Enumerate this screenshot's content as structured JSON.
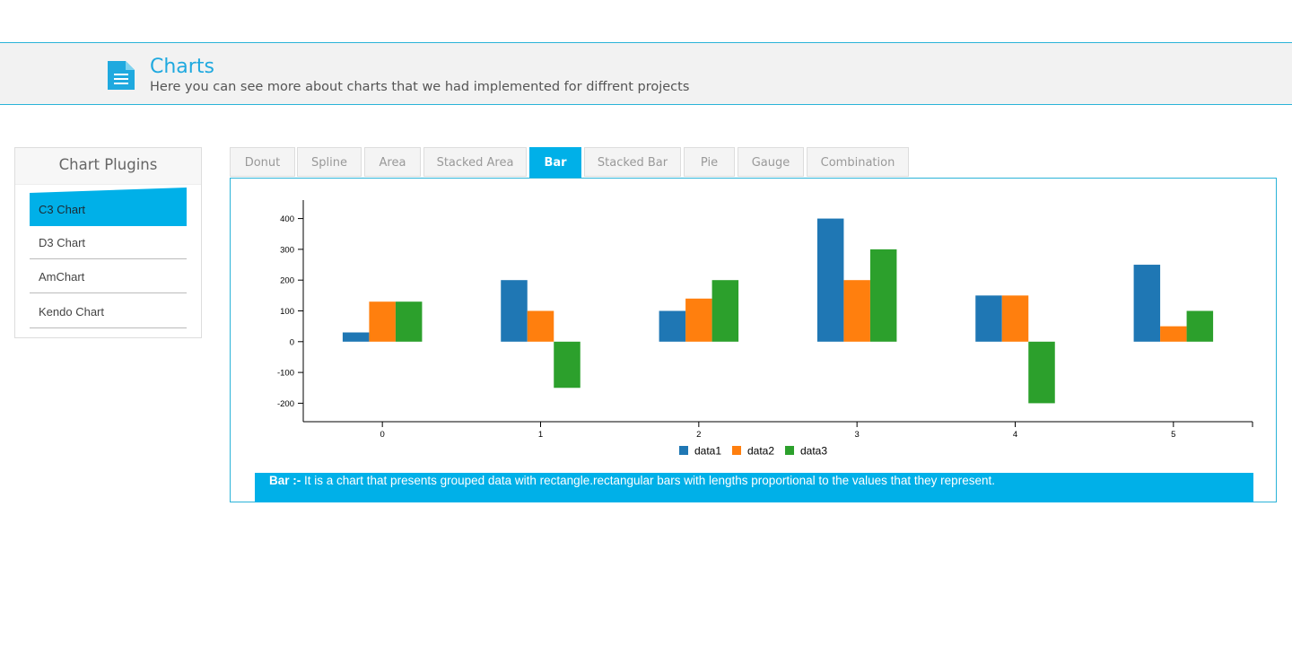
{
  "header": {
    "title": "Charts",
    "subtitle": "Here you can see more about charts that we had implemented for diffrent projects",
    "icon": "document-icon"
  },
  "sidebar": {
    "title": "Chart Plugins",
    "items": [
      {
        "label": "C3 Chart",
        "active": true
      },
      {
        "label": "D3 Chart",
        "active": false
      },
      {
        "label": "AmChart",
        "active": false
      },
      {
        "label": "Kendo Chart",
        "active": false
      }
    ]
  },
  "tabs": [
    {
      "label": "Donut",
      "active": false
    },
    {
      "label": "Spline",
      "active": false
    },
    {
      "label": "Area",
      "active": false
    },
    {
      "label": "Stacked Area",
      "active": false
    },
    {
      "label": "Bar",
      "active": true
    },
    {
      "label": "Stacked Bar",
      "active": false
    },
    {
      "label": "Pie",
      "active": false
    },
    {
      "label": "Gauge",
      "active": false
    },
    {
      "label": "Combination",
      "active": false
    }
  ],
  "description": {
    "term": "Bar :-",
    "text": " It is a chart that presents grouped data with rectangle.rectangular bars with lengths proportional to the values that they represent."
  },
  "colors": {
    "accent": "#00b0e8",
    "data1": "#1f77b4",
    "data2": "#ff7f0e",
    "data3": "#2ca02c"
  },
  "chart_data": {
    "type": "bar",
    "categories": [
      "0",
      "1",
      "2",
      "3",
      "4",
      "5"
    ],
    "series": [
      {
        "name": "data1",
        "values": [
          30,
          200,
          100,
          400,
          150,
          250
        ]
      },
      {
        "name": "data2",
        "values": [
          130,
          100,
          140,
          200,
          150,
          50
        ]
      },
      {
        "name": "data3",
        "values": [
          130,
          -150,
          200,
          300,
          -200,
          100
        ]
      }
    ],
    "y_ticks": [
      -200,
      -100,
      0,
      100,
      200,
      300,
      400
    ],
    "ylim": [
      -260,
      460
    ],
    "legend_position": "bottom-center",
    "grid": false
  }
}
